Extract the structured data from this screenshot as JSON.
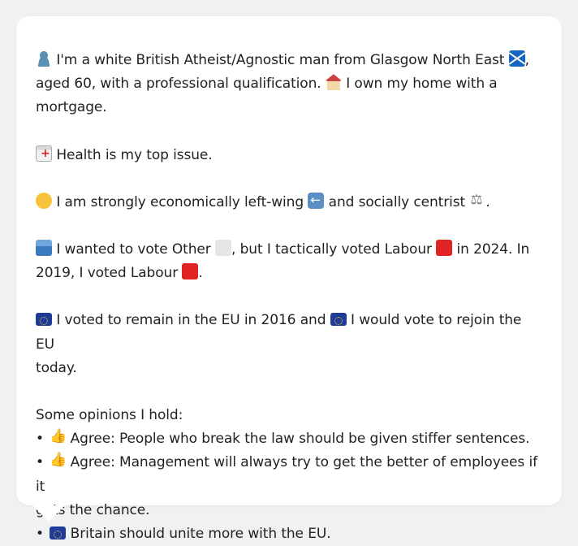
{
  "profile": {
    "intro": {
      "line1": "I'm a white British Atheist/Agnostic man from Glasgow North East",
      "line1_end": ",",
      "line2": "aged 60, with a professional qualification.",
      "line2_end": "I own my home with a",
      "line3": "mortgage."
    },
    "health": "Health is my top issue.",
    "politics": {
      "part1": "I am strongly economically left-wing",
      "part2": "and socially centrist",
      "part3": "."
    },
    "vote": {
      "part1": "I wanted to vote Other",
      "part2": ", but I tactically voted Labour",
      "part3": "in 2024. In",
      "part4": "2019, I voted Labour",
      "part5": "."
    },
    "eu": {
      "part1": "I voted to remain in the EU in 2016 and",
      "part2": "I would vote to rejoin the EU",
      "part3": "today."
    },
    "opinions": {
      "heading": "Some opinions I hold:",
      "bullet": "•",
      "item1": "Agree: People who break the law should be given stiffer sentences.",
      "item2a": "Agree: Management will always try to get the better of employees if it",
      "item2b": "gets the chance.",
      "item3": "Britain should unite more with the EU."
    }
  },
  "icons": {
    "person": "person-icon",
    "scotland_flag": "scotland-flag-icon",
    "house": "house-icon",
    "hospital": "hospital-icon",
    "thinking": "thinking-face-icon",
    "left_arrow": "left-arrow-icon",
    "scales": "balance-scale-icon",
    "ballot": "ballot-box-icon",
    "other_party": "grey-square-icon",
    "labour": "red-square-icon",
    "eu_flag": "eu-flag-icon",
    "thumbs_up": "thumbs-up-icon"
  },
  "colors": {
    "background": "#f0f1f3",
    "card": "#ffffff",
    "text": "#222222",
    "labour_red": "#e02424",
    "other_grey": "#e4e5e6",
    "eu_blue": "#1f3b9a"
  }
}
